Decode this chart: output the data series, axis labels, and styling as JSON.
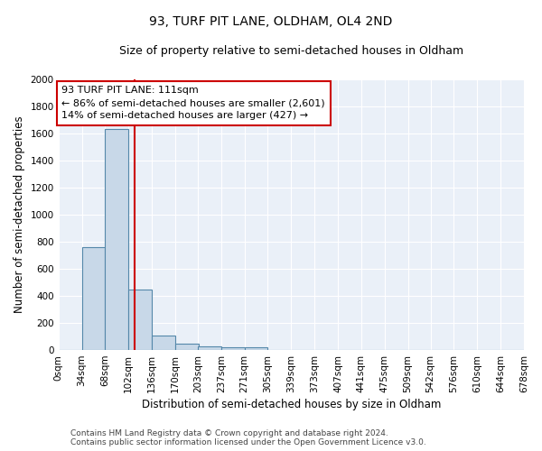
{
  "title": "93, TURF PIT LANE, OLDHAM, OL4 2ND",
  "subtitle": "Size of property relative to semi-detached houses in Oldham",
  "xlabel": "Distribution of semi-detached houses by size in Oldham",
  "ylabel": "Number of semi-detached properties",
  "bin_labels": [
    "0sqm",
    "34sqm",
    "68sqm",
    "102sqm",
    "136sqm",
    "170sqm",
    "203sqm",
    "237sqm",
    "271sqm",
    "305sqm",
    "339sqm",
    "373sqm",
    "407sqm",
    "441sqm",
    "475sqm",
    "509sqm",
    "542sqm",
    "576sqm",
    "610sqm",
    "644sqm",
    "678sqm"
  ],
  "bin_edges": [
    0,
    34,
    68,
    102,
    136,
    170,
    203,
    237,
    271,
    305,
    339,
    373,
    407,
    441,
    475,
    509,
    542,
    576,
    610,
    644,
    678
  ],
  "bar_heights": [
    0,
    760,
    1630,
    445,
    110,
    45,
    30,
    22,
    20,
    0,
    0,
    0,
    0,
    0,
    0,
    0,
    0,
    0,
    0,
    0
  ],
  "bar_color": "#c8d8e8",
  "bar_edge_color": "#5588aa",
  "vline_x": 111,
  "vline_color": "#cc0000",
  "annotation_text_line1": "93 TURF PIT LANE: 111sqm",
  "annotation_text_line2": "← 86% of semi-detached houses are smaller (2,601)",
  "annotation_text_line3": "14% of semi-detached houses are larger (427) →",
  "annotation_box_facecolor": "#ffffff",
  "annotation_box_edgecolor": "#cc0000",
  "ylim": [
    0,
    2000
  ],
  "yticks": [
    0,
    200,
    400,
    600,
    800,
    1000,
    1200,
    1400,
    1600,
    1800,
    2000
  ],
  "background_color": "#eaf0f8",
  "footer_line1": "Contains HM Land Registry data © Crown copyright and database right 2024.",
  "footer_line2": "Contains public sector information licensed under the Open Government Licence v3.0.",
  "title_fontsize": 10,
  "subtitle_fontsize": 9,
  "xlabel_fontsize": 8.5,
  "ylabel_fontsize": 8.5,
  "tick_fontsize": 7.5,
  "annotation_fontsize": 8,
  "footer_fontsize": 6.5
}
